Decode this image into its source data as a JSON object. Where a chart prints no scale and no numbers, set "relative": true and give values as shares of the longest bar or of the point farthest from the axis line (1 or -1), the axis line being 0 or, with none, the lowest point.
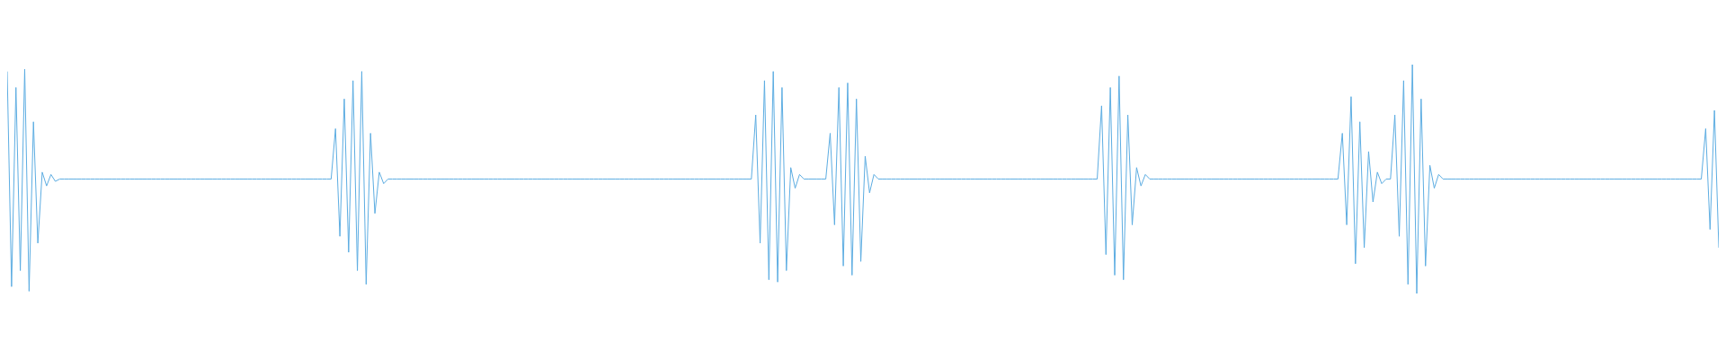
{
  "chart_data": {
    "type": "line",
    "relative": true,
    "color": "#5dade2",
    "categories": [
      null,
      null,
      null,
      null,
      null,
      null,
      null,
      null,
      null,
      null,
      null,
      null,
      null,
      null,
      null,
      null,
      null,
      null,
      null,
      null,
      null,
      null,
      null,
      null,
      null,
      null,
      null,
      null,
      null,
      null,
      null,
      null,
      null,
      null,
      null,
      null,
      null,
      null,
      null,
      null,
      null,
      null,
      null,
      null,
      null,
      null,
      null,
      null,
      null,
      null,
      null,
      null,
      null,
      null,
      null,
      null,
      null,
      null,
      null,
      null,
      null,
      null,
      null,
      null,
      null,
      null,
      null,
      null,
      null,
      null,
      null,
      null,
      null,
      null,
      null,
      null,
      null,
      null,
      null,
      null,
      null,
      null,
      null,
      null,
      null,
      null,
      null,
      null,
      null,
      null,
      null,
      null,
      null,
      null,
      null,
      null,
      null,
      null,
      null,
      null,
      null,
      null,
      null,
      null,
      null,
      null,
      null,
      null,
      null,
      null,
      null,
      null,
      null,
      null,
      null,
      null,
      null,
      null,
      null,
      null,
      null,
      null,
      null,
      null,
      null,
      null,
      null,
      null,
      null,
      null,
      null,
      null,
      null,
      null,
      null,
      null,
      null,
      null,
      null,
      null,
      null,
      null,
      null,
      null,
      null,
      null,
      null,
      null,
      null,
      null,
      null,
      null,
      null,
      null,
      null,
      null,
      null,
      null,
      null,
      null,
      null,
      null,
      null,
      null,
      null,
      null,
      null,
      null,
      null,
      null,
      null,
      null,
      null,
      null,
      null,
      null,
      null,
      null,
      null,
      null,
      null,
      null,
      null,
      null,
      null,
      null,
      null,
      null,
      null,
      null,
      null,
      null,
      null,
      null,
      null,
      null,
      null,
      null,
      null,
      null,
      null,
      null,
      null,
      null,
      null,
      null,
      null,
      null,
      null,
      null,
      null,
      null,
      null,
      null,
      null,
      null,
      null,
      null,
      null,
      null,
      null,
      null,
      null,
      null,
      null,
      null,
      null,
      null,
      null,
      null,
      null,
      null,
      null,
      null,
      null,
      null,
      null,
      null,
      null,
      null,
      null,
      null,
      null,
      null,
      null,
      null,
      null,
      null,
      null,
      null,
      null,
      null,
      null,
      null,
      null,
      null,
      null,
      null,
      null,
      null,
      null,
      null,
      null,
      null,
      null,
      null,
      null,
      null,
      null,
      null,
      null,
      null,
      null,
      null,
      null,
      null,
      null,
      null,
      null,
      null,
      null,
      null,
      null,
      null,
      null,
      null,
      null,
      null,
      null,
      null,
      null,
      null,
      null,
      null,
      null,
      null,
      null,
      null,
      null,
      null,
      null,
      null,
      null,
      null,
      null,
      null,
      null,
      null,
      null,
      null,
      null,
      null,
      null,
      null,
      null,
      null,
      null,
      null,
      null,
      null,
      null,
      null,
      null,
      null,
      null,
      null,
      null,
      null,
      null,
      null,
      null,
      null,
      null,
      null,
      null,
      null,
      null,
      null,
      null,
      null,
      null,
      null,
      null,
      null,
      null,
      null,
      null,
      null,
      null,
      null,
      null,
      null,
      null,
      null,
      null,
      null,
      null,
      null,
      null,
      null,
      null,
      null,
      null,
      null,
      null,
      null,
      null,
      null,
      null,
      null,
      null,
      null,
      null,
      null,
      null,
      null,
      null,
      null,
      null,
      null,
      null,
      null,
      null,
      null,
      null,
      null,
      null,
      null,
      null,
      null,
      null,
      null
    ],
    "values": [
      0.97,
      0.03,
      0.9,
      0.1,
      0.98,
      0.01,
      0.75,
      0.22,
      0.53,
      0.47,
      0.52,
      0.49,
      0.5,
      0.5,
      0.5,
      0.5,
      0.5,
      0.5,
      0.5,
      0.5,
      0.5,
      0.5,
      0.5,
      0.5,
      0.5,
      0.5,
      0.5,
      0.5,
      0.5,
      0.5,
      0.5,
      0.5,
      0.5,
      0.5,
      0.5,
      0.5,
      0.5,
      0.5,
      0.5,
      0.5,
      0.5,
      0.5,
      0.5,
      0.5,
      0.5,
      0.5,
      0.5,
      0.5,
      0.5,
      0.5,
      0.5,
      0.5,
      0.5,
      0.5,
      0.5,
      0.5,
      0.5,
      0.5,
      0.5,
      0.5,
      0.5,
      0.5,
      0.5,
      0.5,
      0.5,
      0.5,
      0.5,
      0.5,
      0.5,
      0.5,
      0.5,
      0.5,
      0.5,
      0.5,
      0.5,
      0.72,
      0.25,
      0.85,
      0.18,
      0.93,
      0.1,
      0.97,
      0.04,
      0.7,
      0.35,
      0.53,
      0.48,
      0.5,
      0.5,
      0.5,
      0.5,
      0.5,
      0.5,
      0.5,
      0.5,
      0.5,
      0.5,
      0.5,
      0.5,
      0.5,
      0.5,
      0.5,
      0.5,
      0.5,
      0.5,
      0.5,
      0.5,
      0.5,
      0.5,
      0.5,
      0.5,
      0.5,
      0.5,
      0.5,
      0.5,
      0.5,
      0.5,
      0.5,
      0.5,
      0.5,
      0.5,
      0.5,
      0.5,
      0.5,
      0.5,
      0.5,
      0.5,
      0.5,
      0.5,
      0.5,
      0.5,
      0.5,
      0.5,
      0.5,
      0.5,
      0.5,
      0.5,
      0.5,
      0.5,
      0.5,
      0.5,
      0.5,
      0.5,
      0.5,
      0.5,
      0.5,
      0.5,
      0.5,
      0.5,
      0.5,
      0.5,
      0.5,
      0.5,
      0.5,
      0.5,
      0.5,
      0.5,
      0.5,
      0.5,
      0.5,
      0.5,
      0.5,
      0.5,
      0.5,
      0.5,
      0.5,
      0.5,
      0.5,
      0.5,
      0.5,
      0.5,
      0.78,
      0.22,
      0.93,
      0.06,
      0.97,
      0.05,
      0.9,
      0.1,
      0.55,
      0.46,
      0.52,
      0.5,
      0.5,
      0.5,
      0.5,
      0.5,
      0.5,
      0.7,
      0.3,
      0.9,
      0.12,
      0.92,
      0.08,
      0.85,
      0.14,
      0.6,
      0.44,
      0.52,
      0.5,
      0.5,
      0.5,
      0.5,
      0.5,
      0.5,
      0.5,
      0.5,
      0.5,
      0.5,
      0.5,
      0.5,
      0.5,
      0.5,
      0.5,
      0.5,
      0.5,
      0.5,
      0.5,
      0.5,
      0.5,
      0.5,
      0.5,
      0.5,
      0.5,
      0.5,
      0.5,
      0.5,
      0.5,
      0.5,
      0.5,
      0.5,
      0.5,
      0.5,
      0.5,
      0.5,
      0.5,
      0.5,
      0.5,
      0.5,
      0.5,
      0.5,
      0.5,
      0.5,
      0.5,
      0.5,
      0.5,
      0.5,
      0.5,
      0.5,
      0.5,
      0.82,
      0.17,
      0.9,
      0.08,
      0.95,
      0.06,
      0.78,
      0.3,
      0.55,
      0.47,
      0.52,
      0.5,
      0.5,
      0.5,
      0.5,
      0.5,
      0.5,
      0.5,
      0.5,
      0.5,
      0.5,
      0.5,
      0.5,
      0.5,
      0.5,
      0.5,
      0.5,
      0.5,
      0.5,
      0.5,
      0.5,
      0.5,
      0.5,
      0.5,
      0.5,
      0.5,
      0.5,
      0.5,
      0.5,
      0.5,
      0.5,
      0.5,
      0.5,
      0.5,
      0.5,
      0.5,
      0.5,
      0.5,
      0.5,
      0.5,
      0.5,
      0.5,
      0.5,
      0.5,
      0.5,
      0.7,
      0.3,
      0.86,
      0.13,
      0.75,
      0.2,
      0.62,
      0.4,
      0.53,
      0.48,
      0.5,
      0.5,
      0.78,
      0.25,
      0.93,
      0.04,
      1.0,
      0.0,
      0.85,
      0.12,
      0.56,
      0.46,
      0.52,
      0.5,
      0.5,
      0.5,
      0.5,
      0.5,
      0.5,
      0.5,
      0.5,
      0.5,
      0.5,
      0.5,
      0.5,
      0.5,
      0.5,
      0.5,
      0.5,
      0.5,
      0.5,
      0.5,
      0.5,
      0.5,
      0.5,
      0.5,
      0.5,
      0.5,
      0.5,
      0.5,
      0.5,
      0.5,
      0.5,
      0.5,
      0.5,
      0.5,
      0.5,
      0.5,
      0.5,
      0.5,
      0.5,
      0.5,
      0.5,
      0.5,
      0.5,
      0.5,
      0.5,
      0.5,
      0.5,
      0.5,
      0.5,
      0.5,
      0.5,
      0.5,
      0.5,
      0.5,
      0.5,
      0.5,
      0.5,
      0.5,
      0.5,
      0.5,
      0.5,
      0.72,
      0.28,
      0.8,
      0.2
    ]
  }
}
